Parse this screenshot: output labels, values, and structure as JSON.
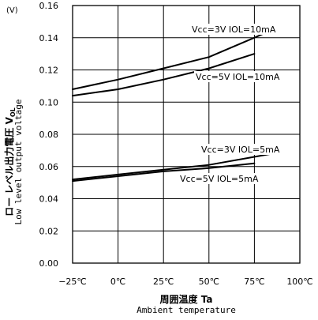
{
  "chart_data": {
    "type": "line",
    "y_unit": "(V)",
    "ylabel_jp": "ロー レベル出力電圧  V",
    "ylabel_jp_sub": "OL",
    "ylabel_en": "Low level output voltage",
    "xlabel_jp": "周囲温度  Ta",
    "xlabel_en": "Ambient temperature",
    "xlim": [
      -25,
      100
    ],
    "ylim": [
      0,
      0.16
    ],
    "x_ticks": [
      -25,
      0,
      25,
      50,
      75,
      100
    ],
    "x_tick_labels": [
      "−25℃",
      "0℃",
      "25℃",
      "50℃",
      "75℃",
      "100℃"
    ],
    "y_ticks": [
      0,
      0.02,
      0.04,
      0.06,
      0.08,
      0.1,
      0.12,
      0.14,
      0.16
    ],
    "y_tick_labels": [
      "0.00",
      "0.02",
      "0.04",
      "0.06",
      "0.08",
      "0.10",
      "0.12",
      "0.14",
      "0.16"
    ],
    "grid": true,
    "line_color": "#000000",
    "series": [
      {
        "name": "Vcc=3V IOL=10mA",
        "x": [
          -25,
          0,
          25,
          50,
          75,
          85
        ],
        "values": [
          0.108,
          0.114,
          0.121,
          0.128,
          0.14,
          0.145
        ]
      },
      {
        "name": "Vcc=5V IOL=10mA",
        "x": [
          -25,
          0,
          25,
          50,
          75
        ],
        "values": [
          0.104,
          0.108,
          0.114,
          0.121,
          0.13
        ]
      },
      {
        "name": "Vcc=3V IOL=5mA",
        "x": [
          -25,
          0,
          25,
          50,
          75,
          85
        ],
        "values": [
          0.052,
          0.055,
          0.058,
          0.061,
          0.066,
          0.068
        ]
      },
      {
        "name": "Vcc=5V IOL=5mA",
        "x": [
          -25,
          0,
          25,
          50,
          75
        ],
        "values": [
          0.051,
          0.054,
          0.057,
          0.059,
          0.062
        ]
      }
    ]
  }
}
